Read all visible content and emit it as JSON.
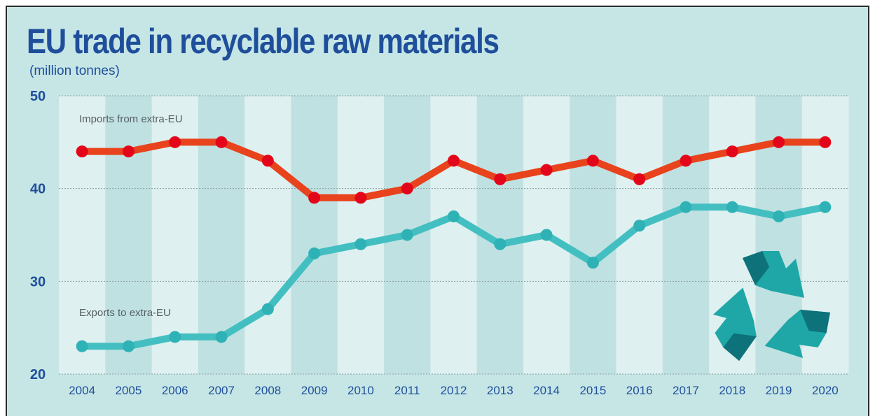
{
  "title": "EU trade in recyclable raw materials",
  "subtitle": "(million tonnes)",
  "icon": "recycle-icon",
  "colors": {
    "imports": "#e8431c",
    "imports_marker": "#e3061a",
    "exports": "#43bfc1",
    "exports_marker": "#2fb2b5",
    "band_light": "#dff0f0",
    "band_dark": "#c0e1e2",
    "axis_text": "#1f4e9a",
    "icon_light": "#1ea7a6",
    "icon_dark": "#0d7279"
  },
  "chart_data": {
    "type": "line",
    "title": "EU trade in recyclable raw materials",
    "subtitle": "(million tonnes)",
    "x": [
      "2004",
      "2005",
      "2006",
      "2007",
      "2008",
      "2009",
      "2010",
      "2011",
      "2012",
      "2013",
      "2014",
      "2015",
      "2016",
      "2017",
      "2018",
      "2019",
      "2020"
    ],
    "ylim": [
      20,
      50
    ],
    "yticks": [
      "20",
      "30",
      "40",
      "50"
    ],
    "grid": true,
    "series": [
      {
        "name": "Imports from extra-EU",
        "values": [
          44,
          44,
          45,
          45,
          43,
          39,
          39,
          40,
          43,
          41,
          42,
          43,
          41,
          43,
          44,
          45,
          45
        ]
      },
      {
        "name": "Exports to extra-EU",
        "values": [
          23,
          23,
          24,
          24,
          27,
          33,
          34,
          35,
          37,
          34,
          35,
          32,
          36,
          38,
          38,
          37,
          38
        ]
      }
    ]
  }
}
